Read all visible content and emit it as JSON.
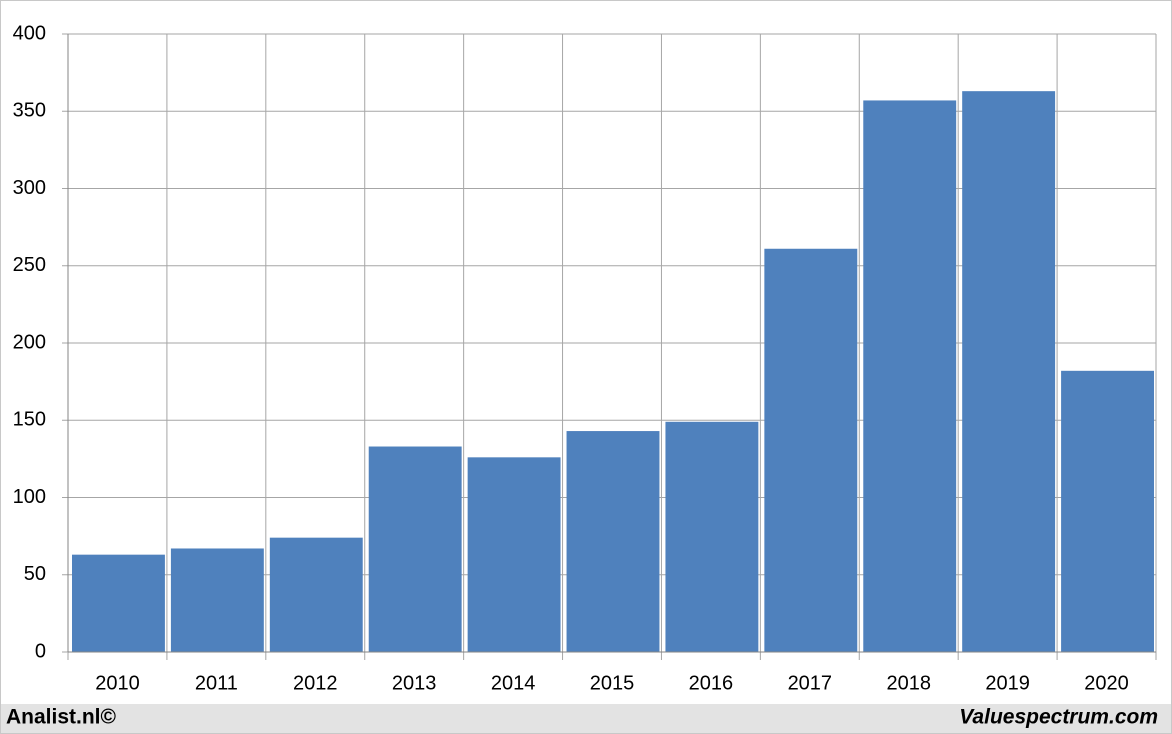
{
  "chart_data": {
    "type": "bar",
    "categories": [
      "2010",
      "2011",
      "2012",
      "2013",
      "2014",
      "2015",
      "2016",
      "2017",
      "2018",
      "2019",
      "2020"
    ],
    "values": [
      63,
      67,
      74,
      133,
      126,
      143,
      149,
      261,
      357,
      363,
      182
    ],
    "color": "#4f81bd",
    "ylim": [
      0,
      400
    ],
    "yticks": [
      0,
      50,
      100,
      150,
      200,
      250,
      300,
      350,
      400
    ],
    "grid": true
  },
  "footer": {
    "left": "Analist.nl©",
    "right": "Valuespectrum.com"
  }
}
